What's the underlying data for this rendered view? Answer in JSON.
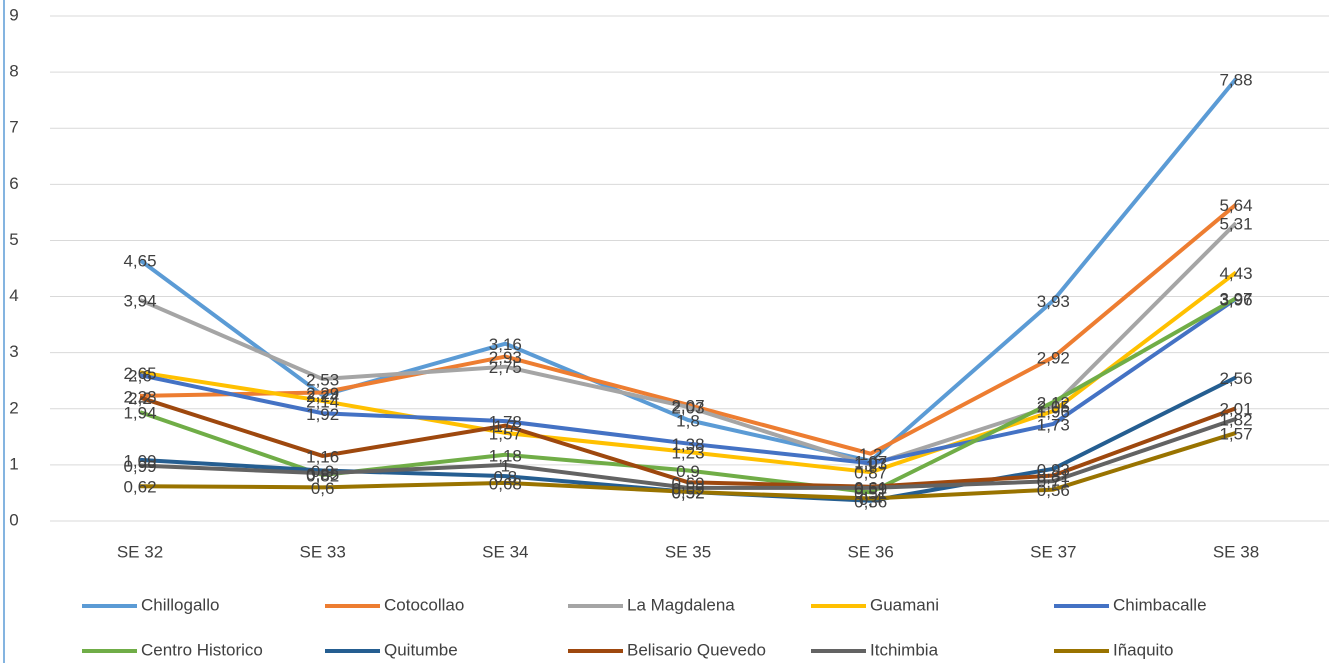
{
  "chart_data": {
    "type": "line",
    "categories": [
      "SE 32",
      "SE 33",
      "SE 34",
      "SE 35",
      "SE 36",
      "SE 37",
      "SE 38"
    ],
    "ylim": [
      0,
      9
    ],
    "yticks": [
      0,
      1,
      2,
      3,
      4,
      5,
      6,
      7,
      8,
      9
    ],
    "grid": true,
    "legend": "bottom",
    "series": [
      {
        "name": "Chillogallo",
        "color": "#5b9bd5",
        "values": [
          4.65,
          2.24,
          3.16,
          1.8,
          1.07,
          3.93,
          7.88
        ],
        "value_labels": [
          "4,65",
          "2,24",
          "3,16",
          "1,8",
          "1,07",
          "3,93",
          "7,88"
        ]
      },
      {
        "name": "Cotocollao",
        "color": "#ed7d31",
        "values": [
          2.23,
          2.29,
          2.93,
          2.07,
          1.2,
          2.92,
          5.64
        ],
        "value_labels": [
          "2,23",
          "2,29",
          "2,93",
          "2,07",
          "1,2",
          "2,92",
          "5,64"
        ]
      },
      {
        "name": "La Magdalena",
        "color": "#a5a5a5",
        "values": [
          3.94,
          2.53,
          2.75,
          2.03,
          1.0,
          2.05,
          5.31
        ],
        "value_labels": [
          "3,94",
          "2,53",
          "2,75",
          "2,03",
          "1",
          "2,05",
          "5,31"
        ]
      },
      {
        "name": "Guamani",
        "color": "#ffc000",
        "values": [
          2.65,
          2.14,
          1.57,
          1.23,
          0.87,
          1.96,
          4.43
        ],
        "value_labels": [
          "2,65",
          "2,14",
          "1,57",
          "1,23",
          "0,87",
          "1,96",
          "4,43"
        ]
      },
      {
        "name": "Chimbacalle",
        "color": "#4472c4",
        "values": [
          2.6,
          1.92,
          1.78,
          1.38,
          1.03,
          1.73,
          3.96
        ],
        "value_labels": [
          "2,6",
          "1,92",
          "1,78",
          "1,38",
          "1,03",
          "1,73",
          "3,96"
        ]
      },
      {
        "name": "Centro Historico",
        "color": "#70ad47",
        "values": [
          1.94,
          0.82,
          1.18,
          0.9,
          0.51,
          2.12,
          3.97
        ],
        "value_labels": [
          "1,94",
          "0,82",
          "1,18",
          "0,9",
          "0,51",
          "2,12",
          "3,97"
        ]
      },
      {
        "name": "Quitumbe",
        "color": "#255e91",
        "values": [
          1.09,
          0.9,
          0.8,
          0.52,
          0.36,
          0.93,
          2.56
        ],
        "value_labels": [
          "1,09",
          "0,9",
          "0,8",
          "0,52",
          "0,36",
          "0,93",
          "2,56"
        ]
      },
      {
        "name": "Belisario Quevedo",
        "color": "#9e480e",
        "values": [
          2.2,
          1.16,
          1.7,
          0.69,
          0.61,
          0.81,
          2.01
        ],
        "value_labels": [
          "2,2",
          "1,16",
          "1,7",
          "0,69",
          "0,61",
          "0,81",
          "2,01"
        ]
      },
      {
        "name": "Itchimbia",
        "color": "#636363",
        "values": [
          0.99,
          0.85,
          1.0,
          0.59,
          0.59,
          0.71,
          1.82
        ],
        "value_labels": [
          "0,99",
          "0,85",
          "1",
          "0,59",
          "0,59",
          "0,71",
          "1,82"
        ]
      },
      {
        "name": "Iñaquito",
        "color": "#997300",
        "values": [
          0.62,
          0.6,
          0.68,
          0.52,
          0.4,
          0.56,
          1.57
        ],
        "value_labels": [
          "0,62",
          "0,6",
          "0,68",
          "0,52",
          "0,4",
          "0,56",
          "1,57"
        ]
      }
    ]
  }
}
